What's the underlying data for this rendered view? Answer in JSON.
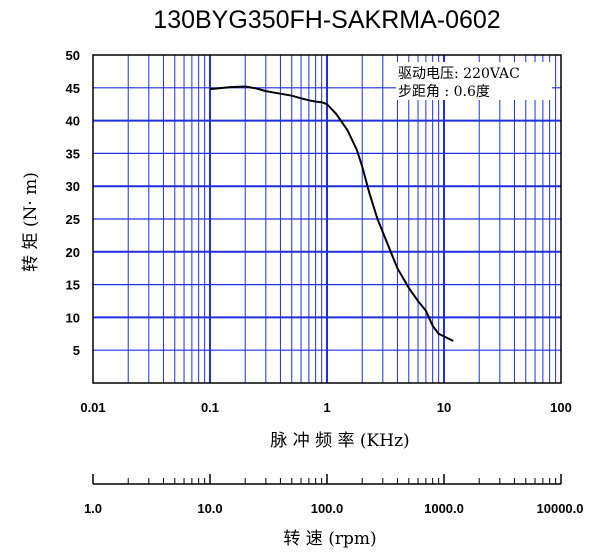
{
  "chart_data": {
    "type": "line",
    "title": "130BYG350FH-SAKRMA-0602",
    "ylabel": "转 矩 (N· m)",
    "xlabel": "脉 冲 频 率 (KHz)",
    "x_scale": "log",
    "xlim": [
      0.01,
      100
    ],
    "ylim": [
      0,
      50
    ],
    "grid": true,
    "x_ticks": [
      "0.01",
      "0.1",
      "1",
      "10",
      "100"
    ],
    "y_ticks": [
      "5",
      "10",
      "15",
      "20",
      "25",
      "30",
      "35",
      "40",
      "45",
      "50"
    ],
    "secondary_axis": {
      "label": "转 速 (rpm)",
      "ticks": [
        "1.0",
        "10.0",
        "100.0",
        "1000.0",
        "10000.0"
      ]
    },
    "annotation": [
      "驱动电压: 220VAC",
      "步距角 : 0.6度"
    ],
    "series": [
      {
        "x": [
          0.1,
          0.15,
          0.2,
          0.25,
          0.3,
          0.4,
          0.5,
          0.6,
          0.7,
          0.8,
          0.9,
          1.0,
          1.2,
          1.5,
          1.8,
          2.0,
          2.3,
          2.7,
          3.0,
          3.5,
          4.0,
          5.0,
          6.0,
          7.0,
          8.0,
          9.0,
          10.0,
          12.0
        ],
        "y": [
          44.8,
          45.1,
          45.2,
          44.9,
          44.5,
          44.1,
          43.8,
          43.4,
          43.1,
          42.9,
          42.8,
          42.5,
          41.0,
          38.5,
          35.5,
          33.0,
          29.0,
          25.0,
          23.0,
          20.0,
          17.5,
          14.5,
          12.5,
          11.0,
          8.7,
          7.5,
          7.1,
          6.4
        ]
      }
    ]
  },
  "colors": {
    "grid": "#1f2fe0",
    "line": "#000000",
    "axis": "#000000"
  }
}
